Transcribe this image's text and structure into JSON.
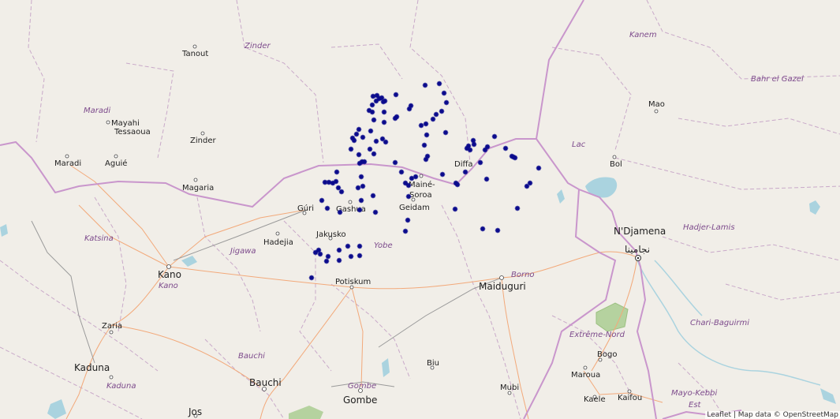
{
  "map": {
    "attribution": "Leaflet | Map data © OpenStreetMap"
  },
  "colors": {
    "land": "#f1eee8",
    "marker": "#0a0a8c",
    "country_border": "#c996cc",
    "region_border": "#c9a9c9",
    "road_major": "#f2a97a",
    "road_minor": "#9a9a9a",
    "water": "#aad3df",
    "park": "#b5d29f"
  },
  "regions": [
    {
      "label": "Zinder"
    },
    {
      "label": "Maradi"
    },
    {
      "label": "Kanem"
    },
    {
      "label": "Bahr el Gazel"
    },
    {
      "label": "Lac"
    },
    {
      "label": "Katsina"
    },
    {
      "label": "Jigawa"
    },
    {
      "label": "Yobe"
    },
    {
      "label": "Kano"
    },
    {
      "label": "Borno"
    },
    {
      "label": "Hadjer-Lamis"
    },
    {
      "label": "Chari-Baguirmi"
    },
    {
      "label": "Bauchi"
    },
    {
      "label": "Kaduna"
    },
    {
      "label": "Gombe"
    },
    {
      "label": "Extrême-Nord"
    },
    {
      "label": "Mayo-Kebbi"
    },
    {
      "label": "Est"
    }
  ],
  "cities": [
    {
      "label": "Tanout"
    },
    {
      "label": "Mayahi"
    },
    {
      "label": "Tessaoua"
    },
    {
      "label": "Zinder"
    },
    {
      "label": "Maradi"
    },
    {
      "label": "Aguié"
    },
    {
      "label": "Magaria"
    },
    {
      "label": "Diffa"
    },
    {
      "label": "Mao"
    },
    {
      "label": "Bol"
    },
    {
      "label": "Mainé-"
    },
    {
      "label": "Soroa"
    },
    {
      "label": "Gashua"
    },
    {
      "label": "Geidam"
    },
    {
      "label": "Gúri"
    },
    {
      "label": "Jakusko"
    },
    {
      "label": "Hadejia"
    },
    {
      "label": "Kano"
    },
    {
      "label": "Potiskum"
    },
    {
      "label": "Maiduguri"
    },
    {
      "label": "N'Djamena"
    },
    {
      "label": "نجامينا"
    },
    {
      "label": "Zaria"
    },
    {
      "label": "Kaduna"
    },
    {
      "label": "Bauchi"
    },
    {
      "label": "Biu"
    },
    {
      "label": "Mubi"
    },
    {
      "label": "Bogo"
    },
    {
      "label": "Maroua"
    },
    {
      "label": "Kaele"
    },
    {
      "label": "Kaifou"
    },
    {
      "label": "Gombe"
    },
    {
      "label": "Jos"
    }
  ]
}
